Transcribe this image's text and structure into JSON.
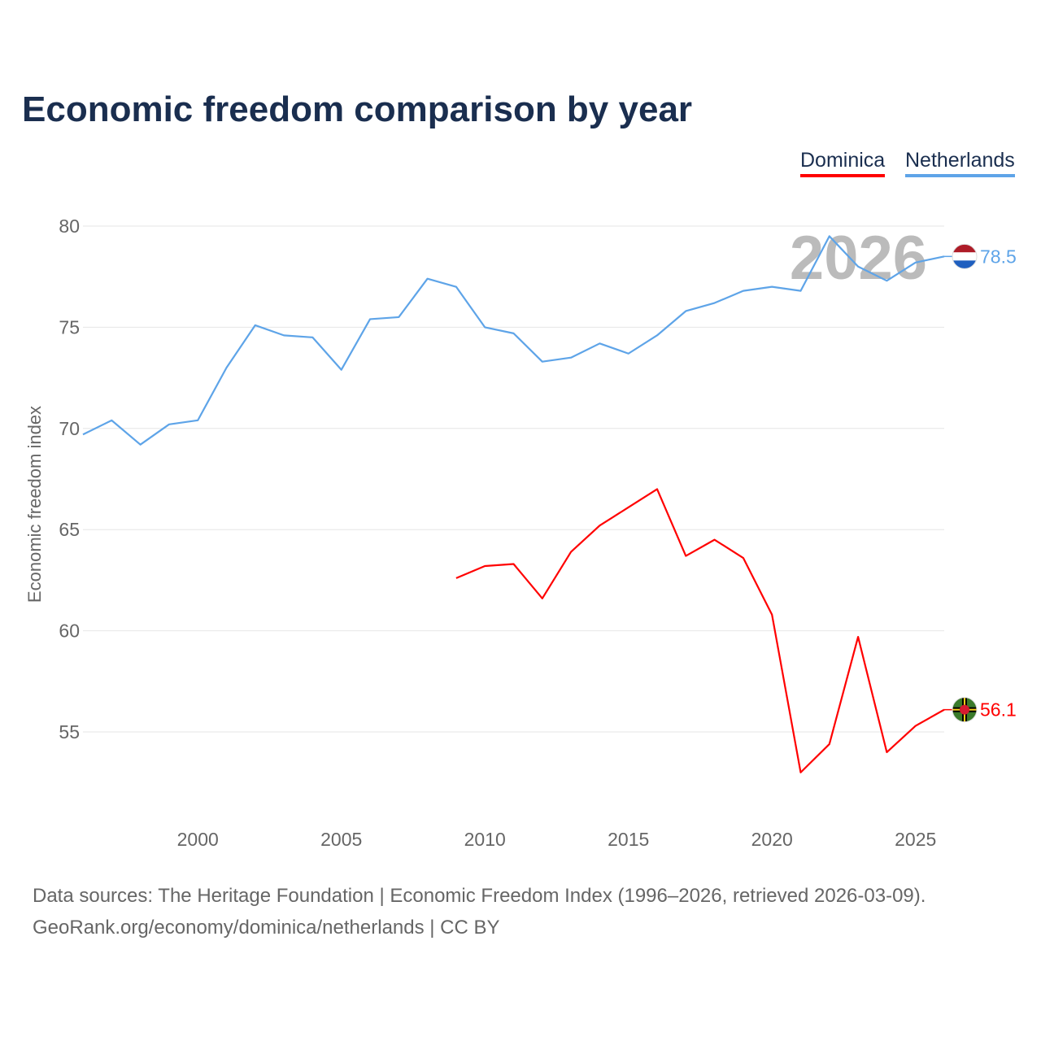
{
  "title": "Economic freedom comparison by year",
  "footer": {
    "line1": "Data sources: The Heritage Foundation | Economic Freedom Index (1996–2026, retrieved 2026-03-09).",
    "line2": "GeoRank.org/economy/dominica/netherlands | CC BY"
  },
  "chart_data": {
    "type": "line",
    "title": "Economic freedom comparison by year",
    "ylabel": "Economic freedom index",
    "xlabel": "",
    "year_watermark": "2026",
    "ylim": [
      50.5,
      81
    ],
    "xlim": [
      1996,
      2026
    ],
    "yticks": [
      "80",
      "75",
      "70",
      "65",
      "60",
      "55"
    ],
    "xticks": [
      "2000",
      "2005",
      "2010",
      "2015",
      "2020",
      "2025"
    ],
    "legend_position": "top-right",
    "series": [
      {
        "name": "Dominica",
        "color": "#ff0000",
        "end_label": "56.1",
        "flag": "dominica-flag",
        "x": [
          2009,
          2010,
          2011,
          2012,
          2013,
          2014,
          2015,
          2016,
          2017,
          2018,
          2019,
          2020,
          2021,
          2022,
          2023,
          2024,
          2025,
          2026
        ],
        "values": [
          62.6,
          63.2,
          63.3,
          61.6,
          63.9,
          65.2,
          66.1,
          67.0,
          63.7,
          64.5,
          63.6,
          60.8,
          53.0,
          54.4,
          59.7,
          54.0,
          55.3,
          56.1
        ]
      },
      {
        "name": "Netherlands",
        "color": "#5ea4e8",
        "end_label": "78.5",
        "flag": "netherlands-flag",
        "x": [
          1996,
          1997,
          1998,
          1999,
          2000,
          2001,
          2002,
          2003,
          2004,
          2005,
          2006,
          2007,
          2008,
          2009,
          2010,
          2011,
          2012,
          2013,
          2014,
          2015,
          2016,
          2017,
          2018,
          2019,
          2020,
          2021,
          2022,
          2023,
          2024,
          2025,
          2026
        ],
        "values": [
          69.7,
          70.4,
          69.2,
          70.2,
          70.4,
          73.0,
          75.1,
          74.6,
          74.5,
          72.9,
          75.4,
          75.5,
          77.4,
          77.0,
          75.0,
          74.7,
          73.3,
          73.5,
          74.2,
          73.7,
          74.6,
          75.8,
          76.2,
          76.8,
          77.0,
          76.8,
          79.5,
          78.0,
          77.3,
          78.2,
          78.5
        ]
      }
    ]
  }
}
